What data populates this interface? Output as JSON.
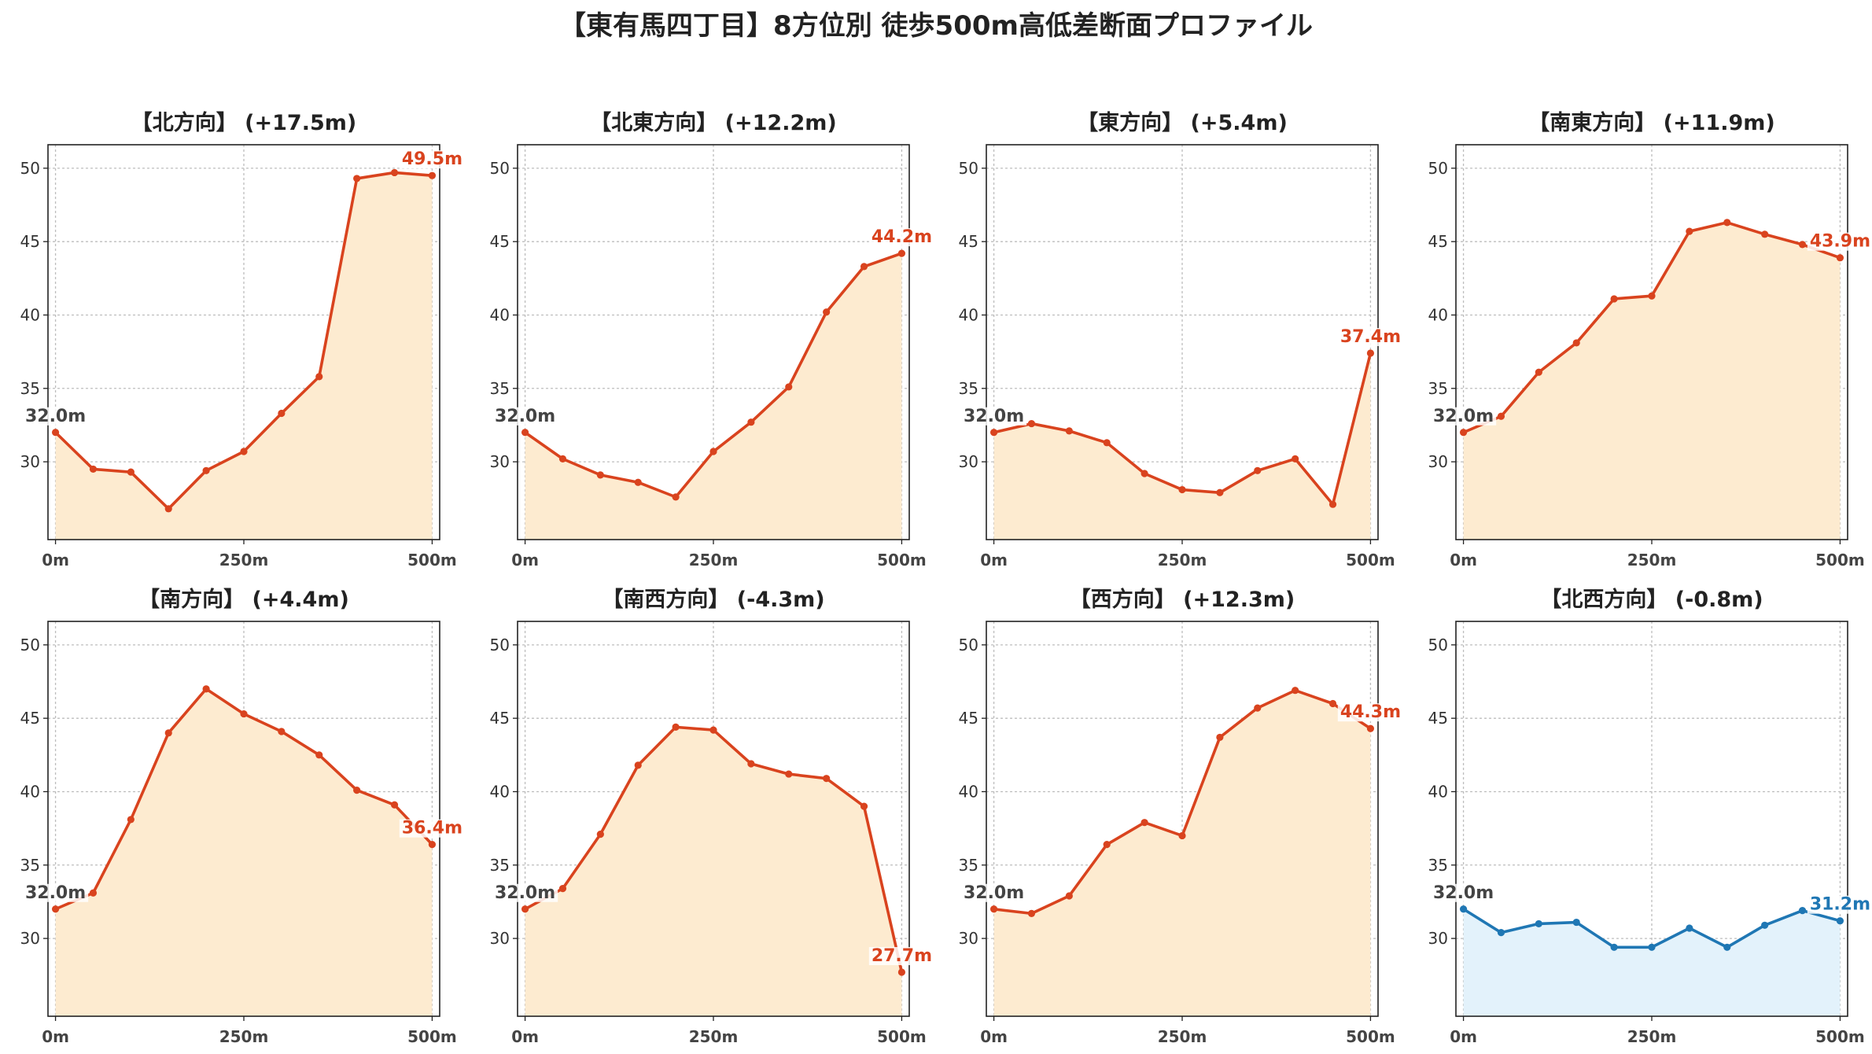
{
  "figure_title": "【東有馬四丁目】8方位別 徒歩500m高低差断面プロファイル",
  "colors": {
    "up_line": "#d9431e",
    "up_fill": "#fdebd0",
    "down_line": "#1f77b4",
    "down_fill": "#e3f2fb",
    "start_label": "#444444"
  },
  "chart_data": [
    {
      "type": "area",
      "title": "【北方向】 (+17.5m)",
      "trend": "up",
      "x": [
        0,
        50,
        100,
        150,
        200,
        250,
        300,
        350,
        400,
        450,
        500
      ],
      "y": [
        32.0,
        29.5,
        29.3,
        26.8,
        29.4,
        30.7,
        33.3,
        35.8,
        49.3,
        49.7,
        49.5
      ],
      "start_label": "32.0m",
      "end_label": "49.5m",
      "xticks": [
        0,
        250,
        500
      ],
      "xtick_labels": [
        "0m",
        "250m",
        "500m"
      ],
      "yticks": [
        30,
        35,
        40,
        45,
        50
      ],
      "ylim": [
        24.7,
        51.6
      ],
      "xlim": [
        -10,
        510
      ],
      "grid": true
    },
    {
      "type": "area",
      "title": "【北東方向】 (+12.2m)",
      "trend": "up",
      "x": [
        0,
        50,
        100,
        150,
        200,
        250,
        300,
        350,
        400,
        450,
        500
      ],
      "y": [
        32.0,
        30.2,
        29.1,
        28.6,
        27.6,
        30.7,
        32.7,
        35.1,
        40.2,
        43.3,
        44.2
      ],
      "start_label": "32.0m",
      "end_label": "44.2m",
      "xticks": [
        0,
        250,
        500
      ],
      "xtick_labels": [
        "0m",
        "250m",
        "500m"
      ],
      "yticks": [
        30,
        35,
        40,
        45,
        50
      ],
      "ylim": [
        24.7,
        51.6
      ],
      "xlim": [
        -10,
        510
      ],
      "grid": true
    },
    {
      "type": "area",
      "title": "【東方向】 (+5.4m)",
      "trend": "up",
      "x": [
        0,
        50,
        100,
        150,
        200,
        250,
        300,
        350,
        400,
        450,
        500
      ],
      "y": [
        32.0,
        32.6,
        32.1,
        31.3,
        29.2,
        28.1,
        27.9,
        29.4,
        30.2,
        27.1,
        37.4
      ],
      "start_label": "32.0m",
      "end_label": "37.4m",
      "xticks": [
        0,
        250,
        500
      ],
      "xtick_labels": [
        "0m",
        "250m",
        "500m"
      ],
      "yticks": [
        30,
        35,
        40,
        45,
        50
      ],
      "ylim": [
        24.7,
        51.6
      ],
      "xlim": [
        -10,
        510
      ],
      "grid": true
    },
    {
      "type": "area",
      "title": "【南東方向】 (+11.9m)",
      "trend": "up",
      "x": [
        0,
        50,
        100,
        150,
        200,
        250,
        300,
        350,
        400,
        450,
        500
      ],
      "y": [
        32.0,
        33.1,
        36.1,
        38.1,
        41.1,
        41.3,
        45.7,
        46.3,
        45.5,
        44.8,
        43.9
      ],
      "start_label": "32.0m",
      "end_label": "43.9m",
      "xticks": [
        0,
        250,
        500
      ],
      "xtick_labels": [
        "0m",
        "250m",
        "500m"
      ],
      "yticks": [
        30,
        35,
        40,
        45,
        50
      ],
      "ylim": [
        24.7,
        51.6
      ],
      "xlim": [
        -10,
        510
      ],
      "grid": true
    },
    {
      "type": "area",
      "title": "【南方向】 (+4.4m)",
      "trend": "up",
      "x": [
        0,
        50,
        100,
        150,
        200,
        250,
        300,
        350,
        400,
        450,
        500
      ],
      "y": [
        32.0,
        33.1,
        38.1,
        44.0,
        47.0,
        45.3,
        44.1,
        42.5,
        40.1,
        39.1,
        36.4
      ],
      "start_label": "32.0m",
      "end_label": "36.4m",
      "xticks": [
        0,
        250,
        500
      ],
      "xtick_labels": [
        "0m",
        "250m",
        "500m"
      ],
      "yticks": [
        30,
        35,
        40,
        45,
        50
      ],
      "ylim": [
        24.7,
        51.6
      ],
      "xlim": [
        -10,
        510
      ],
      "grid": true
    },
    {
      "type": "area",
      "title": "【南西方向】 (-4.3m)",
      "trend": "up",
      "x": [
        0,
        50,
        100,
        150,
        200,
        250,
        300,
        350,
        400,
        450,
        500
      ],
      "y": [
        32.0,
        33.4,
        37.1,
        41.8,
        44.4,
        44.2,
        41.9,
        41.2,
        40.9,
        39.0,
        27.7
      ],
      "start_label": "32.0m",
      "end_label": "27.7m",
      "xticks": [
        0,
        250,
        500
      ],
      "xtick_labels": [
        "0m",
        "250m",
        "500m"
      ],
      "yticks": [
        30,
        35,
        40,
        45,
        50
      ],
      "ylim": [
        24.7,
        51.6
      ],
      "xlim": [
        -10,
        510
      ],
      "grid": true
    },
    {
      "type": "area",
      "title": "【西方向】 (+12.3m)",
      "trend": "up",
      "x": [
        0,
        50,
        100,
        150,
        200,
        250,
        300,
        350,
        400,
        450,
        500
      ],
      "y": [
        32.0,
        31.7,
        32.9,
        36.4,
        37.9,
        37.0,
        43.7,
        45.7,
        46.9,
        46.0,
        44.3
      ],
      "start_label": "32.0m",
      "end_label": "44.3m",
      "xticks": [
        0,
        250,
        500
      ],
      "xtick_labels": [
        "0m",
        "250m",
        "500m"
      ],
      "yticks": [
        30,
        35,
        40,
        45,
        50
      ],
      "ylim": [
        24.7,
        51.6
      ],
      "xlim": [
        -10,
        510
      ],
      "grid": true
    },
    {
      "type": "area",
      "title": "【北西方向】 (-0.8m)",
      "trend": "down",
      "x": [
        0,
        50,
        100,
        150,
        200,
        250,
        300,
        350,
        400,
        450,
        500
      ],
      "y": [
        32.0,
        30.4,
        31.0,
        31.1,
        29.4,
        29.4,
        30.7,
        29.4,
        30.9,
        31.9,
        31.2
      ],
      "start_label": "32.0m",
      "end_label": "31.2m",
      "xticks": [
        0,
        250,
        500
      ],
      "xtick_labels": [
        "0m",
        "250m",
        "500m"
      ],
      "yticks": [
        30,
        35,
        40,
        45,
        50
      ],
      "ylim": [
        24.7,
        51.6
      ],
      "xlim": [
        -10,
        510
      ],
      "grid": true
    }
  ]
}
